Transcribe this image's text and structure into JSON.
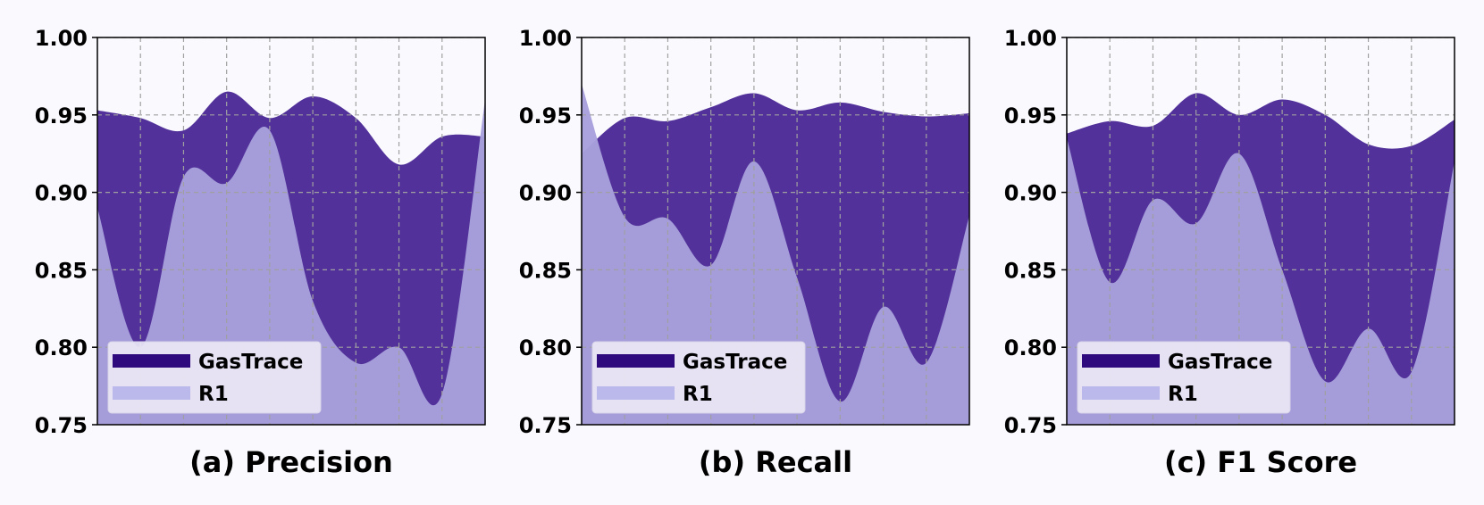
{
  "figure": {
    "background": "#fafafe",
    "colors": {
      "gastrace_swatch": "#2e0a7e",
      "gastrace_fill": "#52329a",
      "r1_swatch": "#bbb8ec",
      "r1_fill": "#a8a0dc",
      "legend_bg": "#ece8f6",
      "grid": "#a0a0a0"
    }
  },
  "chart_data": [
    {
      "type": "area",
      "title": "(a) Precision",
      "ylim": [
        0.75,
        1.0
      ],
      "yticks": [
        "0.75",
        "0.80",
        "0.85",
        "0.90",
        "0.95",
        "1.00"
      ],
      "grid": true,
      "legend_position": "lower-left",
      "x": [
        0,
        1,
        2,
        3,
        4,
        5,
        6,
        7,
        8,
        9
      ],
      "series": [
        {
          "name": "GasTrace",
          "values": [
            0.953,
            0.948,
            0.94,
            0.965,
            0.948,
            0.962,
            0.948,
            0.918,
            0.936,
            0.936
          ]
        },
        {
          "name": "R1",
          "values": [
            0.89,
            0.8,
            0.91,
            0.906,
            0.94,
            0.83,
            0.79,
            0.8,
            0.77,
            0.96
          ]
        }
      ]
    },
    {
      "type": "area",
      "title": "(b) Recall",
      "ylim": [
        0.75,
        1.0
      ],
      "yticks": [
        "0.75",
        "0.80",
        "0.85",
        "0.90",
        "0.95",
        "1.00"
      ],
      "grid": true,
      "legend_position": "lower-left",
      "x": [
        0,
        1,
        2,
        3,
        4,
        5,
        6,
        7,
        8,
        9
      ],
      "series": [
        {
          "name": "GasTrace",
          "values": [
            0.925,
            0.948,
            0.946,
            0.955,
            0.964,
            0.953,
            0.958,
            0.952,
            0.949,
            0.951
          ]
        },
        {
          "name": "R1",
          "values": [
            0.97,
            0.884,
            0.883,
            0.853,
            0.92,
            0.845,
            0.765,
            0.826,
            0.79,
            0.885
          ]
        }
      ]
    },
    {
      "type": "area",
      "title": "(c) F1 Score",
      "ylim": [
        0.75,
        1.0
      ],
      "yticks": [
        "0.75",
        "0.80",
        "0.85",
        "0.90",
        "0.95",
        "1.00"
      ],
      "grid": true,
      "legend_position": "lower-left",
      "x": [
        0,
        1,
        2,
        3,
        4,
        5,
        6,
        7,
        8,
        9
      ],
      "series": [
        {
          "name": "GasTrace",
          "values": [
            0.938,
            0.946,
            0.943,
            0.964,
            0.95,
            0.96,
            0.95,
            0.931,
            0.93,
            0.947
          ]
        },
        {
          "name": "R1",
          "values": [
            0.935,
            0.842,
            0.895,
            0.88,
            0.925,
            0.85,
            0.778,
            0.812,
            0.784,
            0.92
          ]
        }
      ]
    }
  ]
}
